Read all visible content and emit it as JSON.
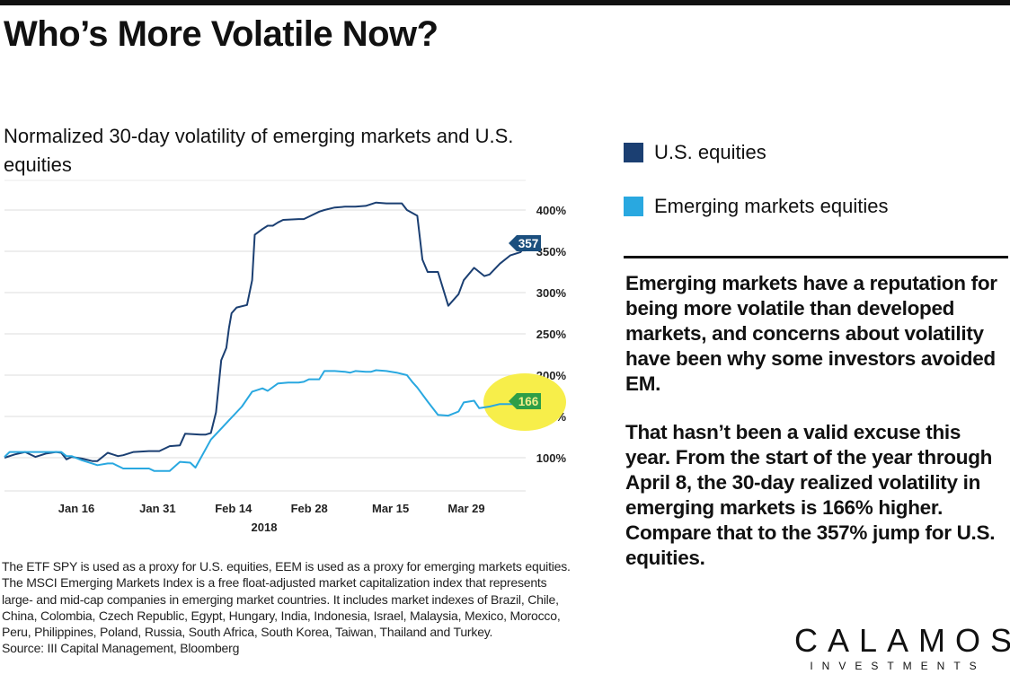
{
  "header": {
    "title": "Who’s More Volatile Now?",
    "subtitle": "Normalized 30-day volatility of emerging markets and U.S. equities"
  },
  "legend": [
    {
      "label": "U.S. equities",
      "color": "#1b3f72"
    },
    {
      "label": "Emerging markets equities",
      "color": "#29a8e0"
    }
  ],
  "body_text": [
    "Emerging markets have a reputation for being more volatile than developed markets, and concerns about volatility have been why some investors avoided EM.",
    "That hasn’t been a valid excuse this year. From the start of the year through April 8, the 30-day realized volatility in emerging markets is 166% higher. Compare that to the 357% jump for U.S. equities."
  ],
  "footnote": {
    "text": "The ETF SPY is used as a proxy for U.S. equities, EEM is used as a proxy for emerging markets equities. The MSCI Emerging Markets Index is a free float-adjusted market capitalization index that represents large- and mid-cap companies in emerging market countries. It includes market indexes of Brazil, Chile, China, Colombia, Czech Republic, Egypt, Hungary, India, Indonesia, Israel, Malaysia, Mexico, Morocco, Peru, Philippines, Poland, Russia, South Africa, South Korea, Taiwan, Thailand and Turkey.",
    "source": "Source: III Capital Management, Bloomberg"
  },
  "logo": {
    "name": "CALAMOS",
    "sub": "INVESTMENTS"
  },
  "chart_data": {
    "type": "line",
    "title": "Normalized 30-day volatility of emerging markets and U.S. equities",
    "xlabel": "2018",
    "ylabel": "",
    "x_ticks": [
      "Jan 16",
      "Jan 31",
      "Feb 14",
      "Feb 28",
      "Mar 15",
      "Mar 29"
    ],
    "x_tick_day_index": [
      14,
      29,
      43,
      57,
      72,
      86
    ],
    "x_range_days": [
      0,
      95
    ],
    "y_ticks": [
      "100%",
      "150%",
      "200%",
      "250%",
      "300%",
      "350%",
      "400%"
    ],
    "y_tick_values": [
      100,
      150,
      200,
      250,
      300,
      350,
      400
    ],
    "ylim": [
      60,
      435
    ],
    "grid": true,
    "legend_position": "right",
    "end_labels": [
      {
        "series": "U.S. equities",
        "value": "357",
        "color": "#1b4f7e"
      },
      {
        "series": "Emerging markets equities",
        "value": "166",
        "color": "#2e9e47",
        "highlight": "#f7ee4a"
      }
    ],
    "series": [
      {
        "name": "U.S. equities",
        "color": "#1b3f72",
        "points": [
          [
            0,
            100
          ],
          [
            2,
            104
          ],
          [
            4,
            107
          ],
          [
            6,
            101
          ],
          [
            8,
            105
          ],
          [
            10,
            107
          ],
          [
            11,
            106
          ],
          [
            12,
            98
          ],
          [
            13,
            101
          ],
          [
            15,
            99
          ],
          [
            17,
            96
          ],
          [
            18,
            96
          ],
          [
            20,
            106
          ],
          [
            22,
            102
          ],
          [
            23,
            103
          ],
          [
            25,
            107
          ],
          [
            28,
            108
          ],
          [
            30,
            108
          ],
          [
            32,
            114
          ],
          [
            34,
            115
          ],
          [
            35,
            129
          ],
          [
            38,
            128
          ],
          [
            39,
            128
          ],
          [
            40,
            130
          ],
          [
            41,
            155
          ],
          [
            42,
            218
          ],
          [
            43,
            233
          ],
          [
            43.5,
            257
          ],
          [
            44,
            275
          ],
          [
            45,
            282
          ],
          [
            47,
            285
          ],
          [
            48,
            315
          ],
          [
            48.5,
            370
          ],
          [
            50,
            377
          ],
          [
            51,
            381
          ],
          [
            52,
            381
          ],
          [
            53,
            385
          ],
          [
            54,
            388
          ],
          [
            57,
            389
          ],
          [
            58,
            389
          ],
          [
            59,
            392
          ],
          [
            61,
            398
          ],
          [
            62,
            400
          ],
          [
            64,
            403
          ],
          [
            66,
            404
          ],
          [
            68,
            404
          ],
          [
            70,
            405
          ],
          [
            72,
            409
          ],
          [
            74,
            408
          ],
          [
            76,
            408
          ],
          [
            77,
            408
          ],
          [
            78,
            400
          ],
          [
            80,
            393
          ],
          [
            81,
            340
          ],
          [
            82,
            325
          ],
          [
            84,
            325
          ],
          [
            86,
            284
          ],
          [
            88,
            298
          ],
          [
            89,
            315
          ],
          [
            91,
            330
          ],
          [
            93,
            320
          ],
          [
            94,
            322
          ],
          [
            96,
            335
          ],
          [
            98,
            345
          ],
          [
            100,
            349
          ],
          [
            101,
            357
          ]
        ]
      },
      {
        "name": "Emerging markets equities",
        "color": "#29a8e0",
        "points": [
          [
            0,
            101
          ],
          [
            1,
            107
          ],
          [
            4,
            107
          ],
          [
            8,
            107
          ],
          [
            11,
            107
          ],
          [
            12,
            102
          ],
          [
            13,
            102
          ],
          [
            15,
            97
          ],
          [
            17,
            93
          ],
          [
            18,
            91
          ],
          [
            20,
            93
          ],
          [
            21,
            93
          ],
          [
            23,
            87
          ],
          [
            26,
            87
          ],
          [
            28,
            87
          ],
          [
            29,
            84
          ],
          [
            31,
            84
          ],
          [
            32,
            84
          ],
          [
            34,
            95
          ],
          [
            36,
            94
          ],
          [
            37,
            88
          ],
          [
            40,
            122
          ],
          [
            43,
            142
          ],
          [
            46,
            162
          ],
          [
            48,
            180
          ],
          [
            50,
            184
          ],
          [
            51,
            181
          ],
          [
            53,
            190
          ],
          [
            55,
            191
          ],
          [
            57,
            191
          ],
          [
            58,
            192
          ],
          [
            59,
            195
          ],
          [
            61,
            195
          ],
          [
            62,
            205
          ],
          [
            64,
            205
          ],
          [
            66,
            204
          ],
          [
            67,
            203
          ],
          [
            68,
            205
          ],
          [
            70,
            204
          ],
          [
            71,
            204
          ],
          [
            72,
            206
          ],
          [
            74,
            205
          ],
          [
            76,
            203
          ],
          [
            78,
            200
          ],
          [
            79,
            192
          ],
          [
            80,
            185
          ],
          [
            82,
            168
          ],
          [
            84,
            152
          ],
          [
            86,
            151
          ],
          [
            88,
            156
          ],
          [
            89,
            167
          ],
          [
            91,
            169
          ],
          [
            92,
            160
          ],
          [
            94,
            162
          ],
          [
            96,
            165
          ],
          [
            98,
            165
          ],
          [
            100,
            165
          ],
          [
            101,
            166
          ]
        ]
      }
    ]
  }
}
